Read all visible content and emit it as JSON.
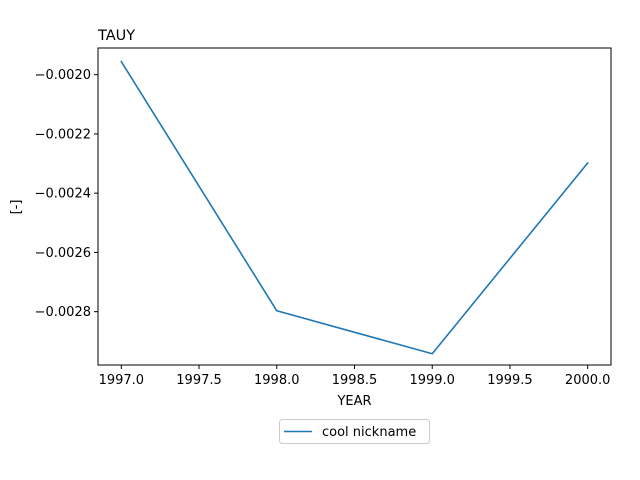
{
  "chart_data": {
    "type": "line",
    "title": "TAUY",
    "xlabel": "YEAR",
    "ylabel": "[-]",
    "xlim": [
      1996.85,
      2000.15
    ],
    "ylim": [
      -0.00298,
      -0.00191
    ],
    "xticks": [
      1997.0,
      1997.5,
      1998.0,
      1998.5,
      1999.0,
      1999.5,
      2000.0
    ],
    "xtick_labels": [
      "1997.0",
      "1997.5",
      "1998.0",
      "1998.5",
      "1999.0",
      "1999.5",
      "2000.0"
    ],
    "yticks": [
      -0.002,
      -0.0022,
      -0.0024,
      -0.0026,
      -0.0028
    ],
    "ytick_labels": [
      "−0.0020",
      "−0.0022",
      "−0.0024",
      "−0.0026",
      "−0.0028"
    ],
    "grid": false,
    "legend_position": "bottom-center-outside",
    "series": [
      {
        "name": "cool nickname",
        "color": "#1f77b4",
        "x": [
          1997.0,
          1998.0,
          1999.0,
          2000.0
        ],
        "y": [
          -0.001956,
          -0.002797,
          -0.002942,
          -0.002298
        ]
      }
    ]
  }
}
